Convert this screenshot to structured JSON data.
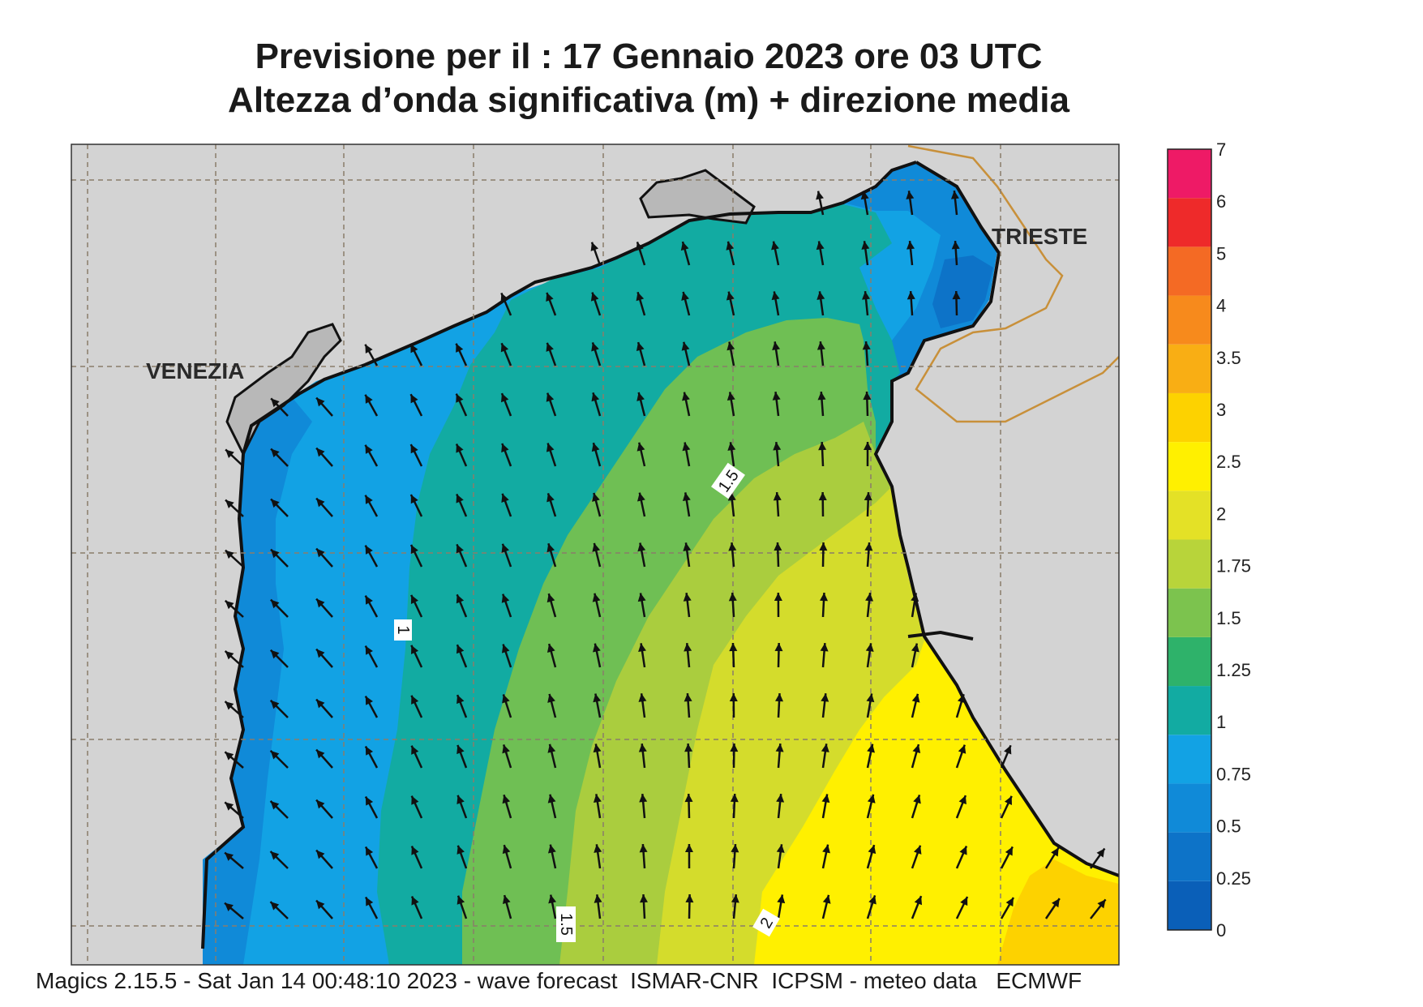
{
  "title": {
    "line1": "Previsione per il  :  17  Gennaio  2023   ore 03 UTC",
    "line2": "Altezza d’onda significativa (m) + direzione media"
  },
  "map": {
    "places": [
      {
        "name": "VENEZIA"
      },
      {
        "name": "TRIESTE"
      }
    ],
    "contour_labels": [
      "1",
      "1.5",
      "1.5",
      "2"
    ],
    "arrow_direction_note": "arrows",
    "colors": {
      "land": "#d3d3d3",
      "coast": "#111111",
      "border": "#c8903a",
      "grid": "#8a7d6a"
    }
  },
  "colorbar": {
    "labels": [
      "0",
      "0.25",
      "0.5",
      "0.75",
      "1",
      "1.25",
      "1.5",
      "1.75",
      "2",
      "2.5",
      "3",
      "3.5",
      "4",
      "5",
      "6",
      "7"
    ],
    "colors": [
      "#0a5fb8",
      "#0d73c8",
      "#108ad8",
      "#12a2e4",
      "#12aba2",
      "#2eb26a",
      "#7cc34e",
      "#b8d43a",
      "#e4e126",
      "#fff000",
      "#fdd200",
      "#f9ae14",
      "#f78a1c",
      "#f46a24",
      "#ee2a2a",
      "#ee1a66"
    ]
  },
  "footer": "Magics 2.15.5 - Sat Jan 14 00:48:10 2023 - wave forecast  ISMAR-CNR  ICPSM - meteo data   ECMWF"
}
